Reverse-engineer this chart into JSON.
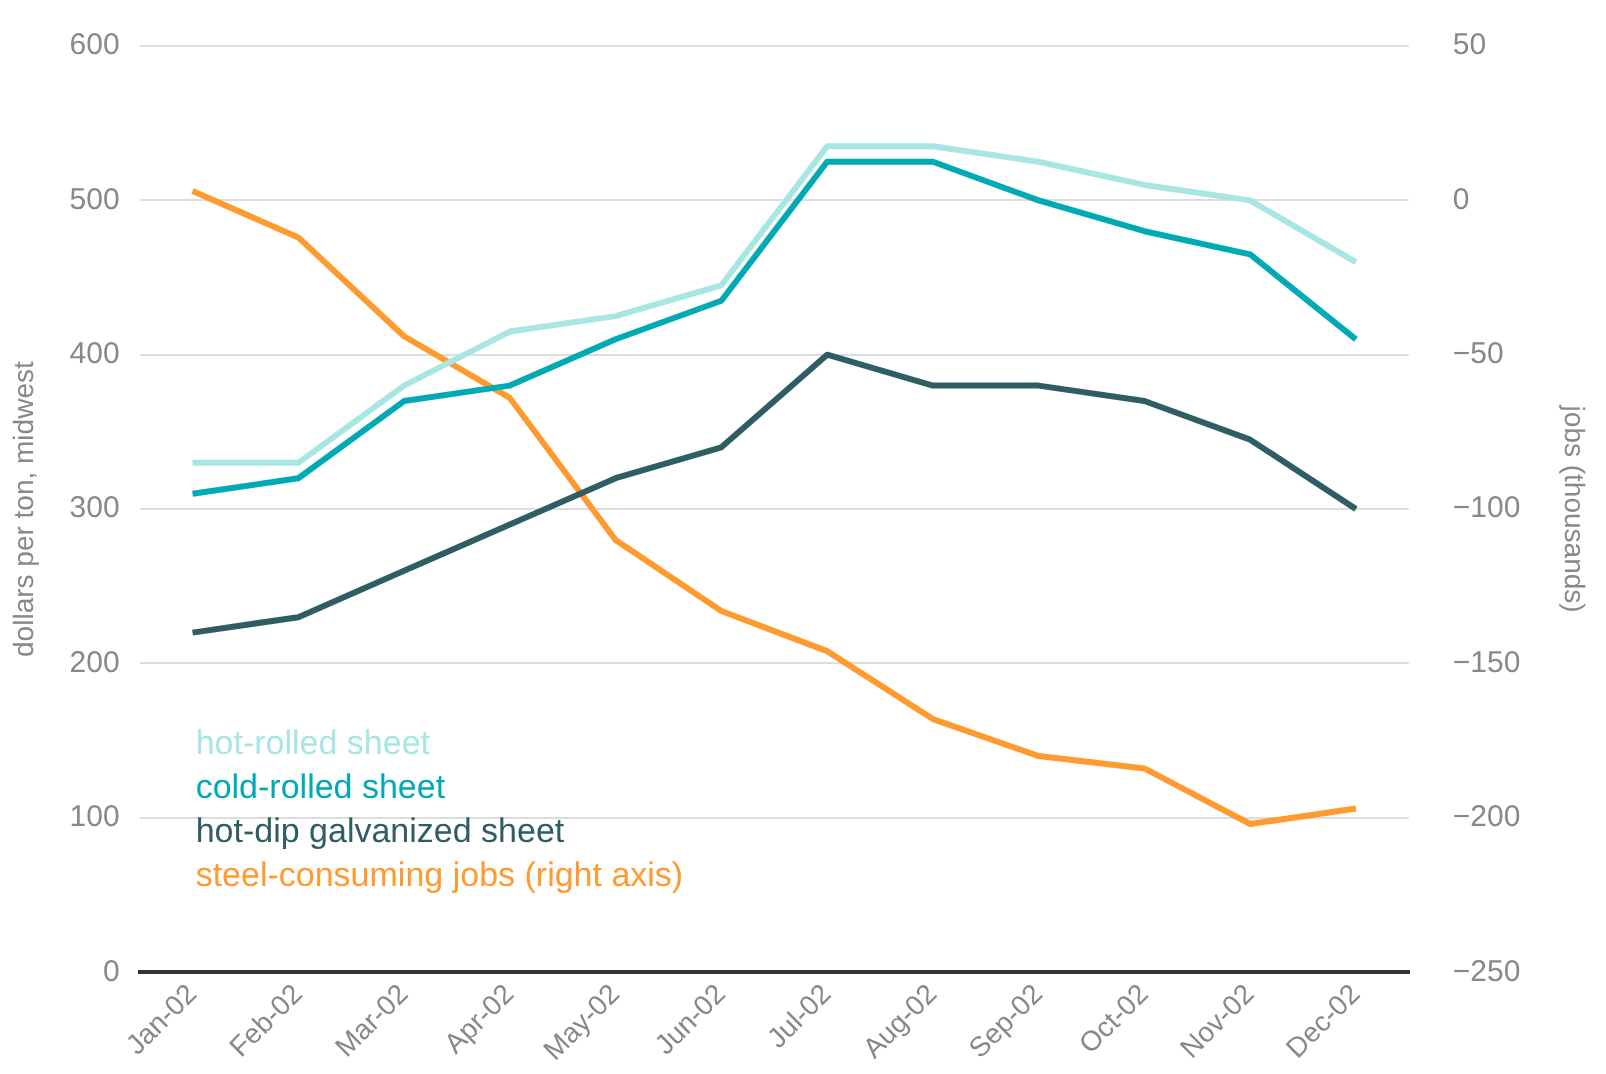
{
  "chart_data": {
    "type": "line",
    "categories": [
      "Jan-02",
      "Feb-02",
      "Mar-02",
      "Apr-02",
      "May-02",
      "Jun-02",
      "Jul-02",
      "Aug-02",
      "Sep-02",
      "Oct-02",
      "Nov-02",
      "Dec-02"
    ],
    "series": [
      {
        "name": "hot-rolled sheet",
        "color": "#a8e6e4",
        "values": [
          330,
          330,
          380,
          415,
          425,
          445,
          535,
          535,
          525,
          510,
          500,
          460
        ]
      },
      {
        "name": "cold-rolled sheet",
        "color": "#00aab5",
        "values": [
          310,
          320,
          370,
          380,
          410,
          435,
          525,
          525,
          500,
          480,
          465,
          410
        ]
      },
      {
        "name": "hot-dip galvanized sheet",
        "color": "#2e5e63",
        "values": [
          220,
          230,
          260,
          290,
          320,
          340,
          400,
          380,
          380,
          370,
          345,
          300
        ]
      },
      {
        "name": "steel-consuming jobs (right axis)",
        "color": "#ff9a2e",
        "axis": "y2",
        "values": [
          3,
          -12,
          -44,
          -64,
          -110,
          -133,
          -146,
          -168,
          -180,
          -184,
          -202,
          -197
        ]
      }
    ],
    "ylabel": "dollars per ton, midwest",
    "y2label": "jobs (thousands)",
    "ylim": [
      0,
      600
    ],
    "yticks": [
      0,
      100,
      200,
      300,
      400,
      500,
      600
    ],
    "y2lim": [
      -250,
      50
    ],
    "y2ticks": [
      -250,
      -200,
      -150,
      -100,
      -50,
      0,
      50
    ],
    "grid": "y",
    "legend": "bottom left",
    "marker": "none",
    "line_style": "solid"
  }
}
